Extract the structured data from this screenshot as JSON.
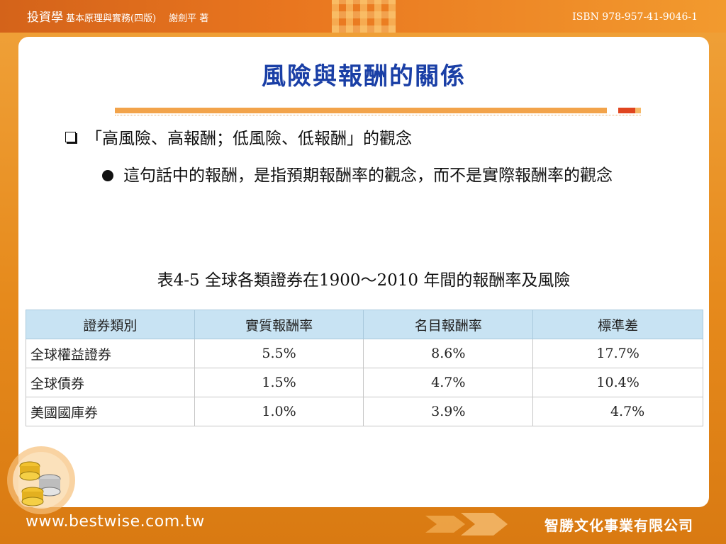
{
  "header": {
    "book_title": "投資學",
    "subtitle": "基本原理與實務(四版)",
    "author": "謝劍平 著",
    "isbn": "ISBN 978-957-41-9046-1"
  },
  "slide": {
    "title": "風險與報酬的關係",
    "bullet1": "「高風險、高報酬；低風險、低報酬」的觀念",
    "bullet2": "這句話中的報酬，是指預期報酬率的觀念，而不是實際報酬率的觀念",
    "caption": "表4-5 全球各類證券在1900～2010 年間的報酬率及風險"
  },
  "table": {
    "headers": [
      "證券類別",
      "實質報酬率",
      "名目報酬率",
      "標準差"
    ],
    "rows": [
      [
        "全球權益證券",
        "5.5%",
        "8.6%",
        "17.7%"
      ],
      [
        "全球債券",
        "1.5%",
        "4.7%",
        "10.4%"
      ],
      [
        "美國國庫券",
        "1.0%",
        "3.9%",
        "4.7%"
      ]
    ]
  },
  "footer": {
    "website": "www.bestwise.com.tw",
    "company": "智勝文化事業有限公司"
  },
  "colors": {
    "title_blue": "#1a3fa6",
    "accent_orange": "#e88a1e",
    "table_header_bg": "#c8e3f3"
  }
}
